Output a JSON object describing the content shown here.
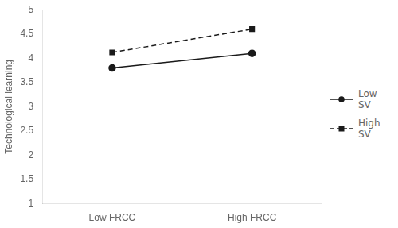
{
  "chart_data": {
    "type": "line",
    "categories": [
      "Low FRCC",
      "High FRCC"
    ],
    "series": [
      {
        "name": "Low\nSV",
        "color": "#1a1a1a",
        "values": [
          3.8,
          4.1
        ],
        "marker": "circle",
        "line_style": "solid"
      },
      {
        "name": "High\nSV",
        "color": "#1a1a1a",
        "values": [
          4.12,
          4.6
        ],
        "marker": "square",
        "line_style": "dashed"
      }
    ],
    "ylabel": "Technological learning",
    "ylim": [
      1,
      5
    ],
    "yticks": [
      1,
      1.5,
      2,
      2.5,
      3,
      3.5,
      4,
      4.5,
      5
    ],
    "grid": false,
    "legend": "right"
  }
}
